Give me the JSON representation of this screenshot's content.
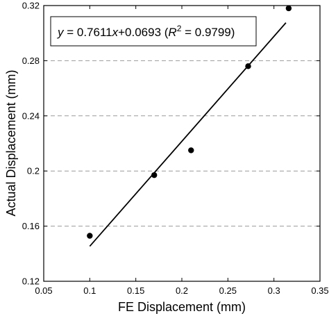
{
  "chart_data": {
    "type": "scatter",
    "xlabel": "FE Displacement (mm)",
    "ylabel": "Actual Displacement (mm)",
    "xlim": [
      0.05,
      0.35
    ],
    "ylim": [
      0.12,
      0.32
    ],
    "x_ticks": [
      0.05,
      0.1,
      0.15,
      0.2,
      0.25,
      0.3,
      0.35
    ],
    "x_tick_labels": [
      "0.05",
      "0.1",
      "0.15",
      "0.2",
      "0.25",
      "0.3",
      "0.35"
    ],
    "y_ticks": [
      0.12,
      0.16,
      0.2,
      0.24,
      0.28,
      0.32
    ],
    "y_tick_labels": [
      "0.12",
      "0.16",
      "0.2",
      "0.24",
      "0.28",
      "0.32"
    ],
    "grid": "horizontal-dashed",
    "series": [
      {
        "points": [
          {
            "x": 0.1,
            "y": 0.153
          },
          {
            "x": 0.17,
            "y": 0.197
          },
          {
            "x": 0.21,
            "y": 0.215
          },
          {
            "x": 0.272,
            "y": 0.276
          },
          {
            "x": 0.316,
            "y": 0.318
          }
        ]
      }
    ],
    "fit_line": {
      "slope": 0.7611,
      "intercept": 0.0693,
      "x_range": [
        0.1,
        0.313
      ]
    },
    "annotation": {
      "lhs": "y",
      "mid": " = 0.7611",
      "x": "x",
      "rest": "+0.0693 (",
      "r": "R",
      "sup": "2",
      "tail": " = 0.9799)",
      "placement": "top-left"
    }
  }
}
